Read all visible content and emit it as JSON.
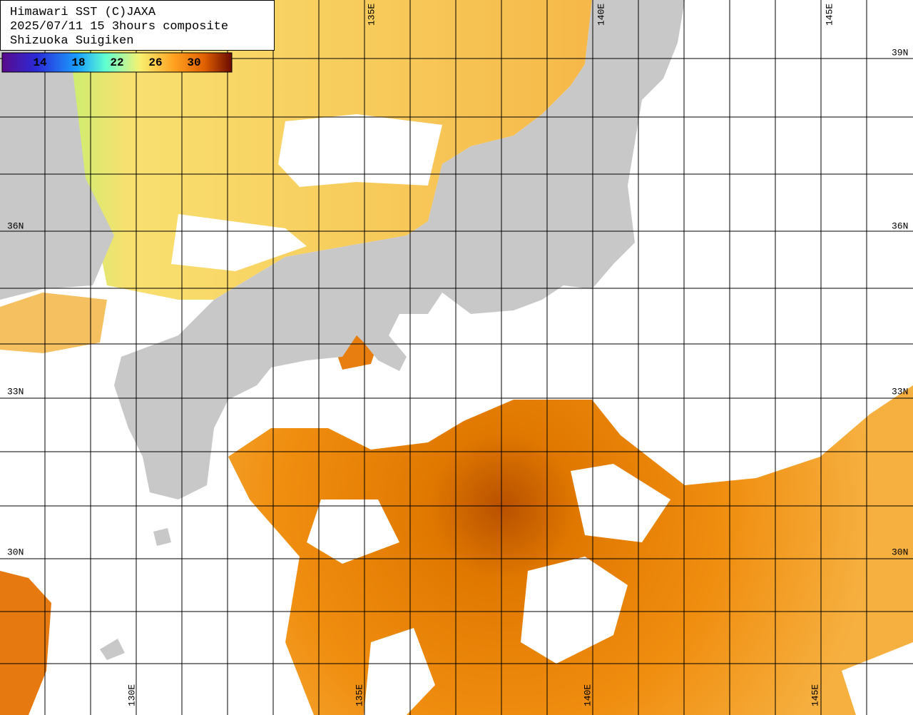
{
  "header": {
    "lines": [
      "Himawari SST (C)JAXA",
      "2025/07/11 15 3hours composite",
      "Shizuoka Suigiken"
    ]
  },
  "colorbar": {
    "labels": [
      "14",
      "18",
      "22",
      "26",
      "30"
    ]
  },
  "graticule": {
    "lat_labels_left": [
      "36N",
      "33N",
      "30N"
    ],
    "lat_labels_right": [
      "39N",
      "36N",
      "33N",
      "30N"
    ],
    "lon_labels_top": [
      "135E",
      "140E",
      "145E"
    ],
    "lon_labels_bottom": [
      "130E",
      "135E",
      "140E",
      "145E"
    ]
  }
}
